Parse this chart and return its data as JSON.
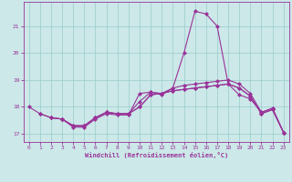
{
  "xlabel": "Windchill (Refroidissement éolien,°C)",
  "xlim": [
    -0.5,
    23.5
  ],
  "ylim": [
    16.7,
    21.9
  ],
  "yticks": [
    17,
    18,
    19,
    20,
    21
  ],
  "xticks": [
    0,
    1,
    2,
    3,
    4,
    5,
    6,
    7,
    8,
    9,
    10,
    11,
    12,
    13,
    14,
    15,
    16,
    17,
    18,
    19,
    20,
    21,
    22,
    23
  ],
  "bg_color": "#cce8e8",
  "grid_color": "#99cccc",
  "line_color": "#993399",
  "series": [
    {
      "x": [
        0,
        1,
        2,
        3,
        4,
        5,
        6,
        7,
        8,
        9,
        10,
        11,
        12,
        13,
        14,
        15,
        16,
        17,
        18,
        19,
        20,
        21,
        22,
        23
      ],
      "y": [
        18.0,
        17.75,
        17.6,
        17.55,
        17.25,
        17.25,
        17.55,
        17.75,
        17.7,
        17.7,
        18.5,
        18.55,
        18.45,
        18.7,
        20.0,
        21.55,
        21.45,
        21.0,
        18.85,
        18.45,
        18.3,
        17.8,
        17.95,
        17.05
      ]
    },
    {
      "x": [
        1,
        2,
        3,
        4,
        5,
        6,
        7,
        8,
        9,
        10,
        11,
        12,
        13,
        14,
        15,
        16,
        17,
        18,
        19,
        20,
        21,
        22,
        23
      ],
      "y": [
        17.75,
        17.6,
        17.55,
        17.3,
        17.3,
        17.6,
        17.8,
        17.75,
        17.75,
        18.2,
        18.55,
        18.5,
        18.7,
        18.8,
        18.85,
        18.9,
        18.95,
        19.0,
        18.85,
        18.5,
        17.8,
        17.95,
        17.05
      ]
    },
    {
      "x": [
        2,
        3,
        4,
        5,
        6,
        7,
        8,
        9,
        10,
        11,
        12,
        13,
        14,
        15,
        16,
        17,
        18,
        19,
        20,
        21,
        22,
        23
      ],
      "y": [
        17.6,
        17.55,
        17.3,
        17.3,
        17.6,
        17.8,
        17.75,
        17.75,
        18.0,
        18.45,
        18.5,
        18.6,
        18.65,
        18.7,
        18.75,
        18.8,
        18.85,
        18.7,
        18.4,
        17.75,
        17.9,
        17.05
      ]
    },
    {
      "x": [
        3,
        4,
        5,
        6,
        7,
        8,
        9,
        10,
        11,
        12,
        13,
        14,
        15,
        16,
        17,
        18,
        19,
        20,
        21,
        22,
        23
      ],
      "y": [
        17.55,
        17.3,
        17.3,
        17.6,
        17.8,
        17.75,
        17.75,
        18.0,
        18.45,
        18.5,
        18.6,
        18.65,
        18.7,
        18.75,
        18.8,
        18.85,
        18.7,
        18.4,
        17.75,
        17.9,
        17.05
      ]
    }
  ]
}
